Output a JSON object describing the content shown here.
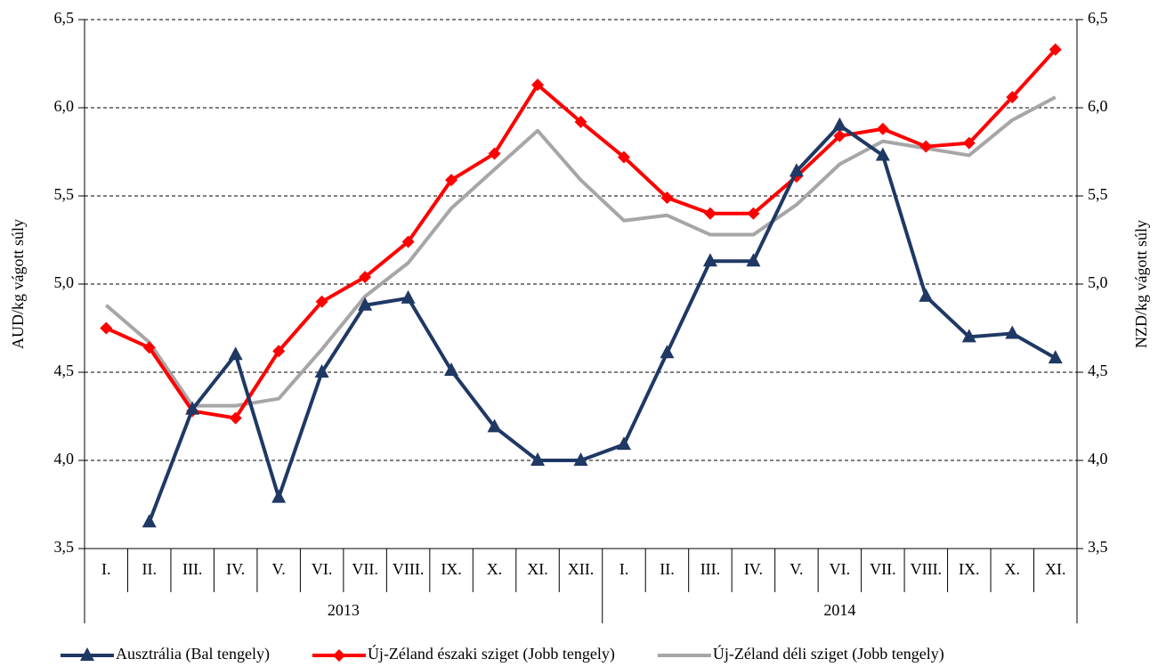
{
  "chart_data": {
    "type": "line",
    "categories": [
      "I.",
      "II.",
      "III.",
      "IV.",
      "V.",
      "VI.",
      "VII.",
      "VIII.",
      "IX.",
      "X.",
      "XI.",
      "XII.",
      "I.",
      "II.",
      "III.",
      "IV.",
      "V.",
      "VI.",
      "VII.",
      "VIII.",
      "IX.",
      "X.",
      "XI."
    ],
    "groups": [
      {
        "label": "2013",
        "size": 12
      },
      {
        "label": "2014",
        "size": 11
      }
    ],
    "ylabel": "AUD/kg vágott súly",
    "y2label": "NZD/kg vágott súly",
    "ylim": [
      3.5,
      6.5
    ],
    "yticks": [
      {
        "value": 3.5,
        "label": "3,5"
      },
      {
        "value": 4,
        "label": "4,0"
      },
      {
        "value": 4.5,
        "label": "4,5"
      },
      {
        "value": 5,
        "label": "5,0"
      },
      {
        "value": 5.5,
        "label": "5,5"
      },
      {
        "value": 6,
        "label": "6,0"
      },
      {
        "value": 6.5,
        "label": "6,5"
      }
    ],
    "y2lim": [
      3.5,
      6.5
    ],
    "y2ticks": [
      {
        "value": 3.5,
        "label": "3,5"
      },
      {
        "value": 4,
        "label": "4,0"
      },
      {
        "value": 4.5,
        "label": "4,5"
      },
      {
        "value": 5,
        "label": "5,0"
      },
      {
        "value": 5.5,
        "label": "5,5"
      },
      {
        "value": 6,
        "label": "6,0"
      },
      {
        "value": 6.5,
        "label": "6,5"
      }
    ],
    "grid": true,
    "legend": "bottom",
    "series": [
      {
        "name": "Ausztrália (Bal tengely)",
        "color": "#1f3864",
        "marker": "triangle",
        "axis": "y",
        "values": [
          null,
          3.65,
          4.29,
          4.6,
          3.79,
          4.5,
          4.88,
          4.92,
          4.51,
          4.19,
          4.0,
          4.0,
          4.09,
          4.61,
          5.13,
          5.13,
          5.64,
          5.9,
          5.73,
          4.93,
          4.7,
          4.72,
          4.58
        ]
      },
      {
        "name": "Új-Zéland északi sziget (Jobb tengely)",
        "color": "#ff0000",
        "marker": "diamond",
        "axis": "y2",
        "values": [
          4.75,
          4.64,
          4.28,
          4.24,
          4.62,
          4.9,
          5.04,
          5.24,
          5.59,
          5.74,
          6.13,
          5.92,
          5.72,
          5.49,
          5.4,
          5.4,
          5.61,
          5.84,
          5.88,
          5.78,
          5.8,
          6.06,
          6.33
        ]
      },
      {
        "name": "Új-Zéland déli sziget (Jobb tengely)",
        "color": "#a6a6a6",
        "marker": "none",
        "axis": "y2",
        "values": [
          4.88,
          4.67,
          4.31,
          4.31,
          4.35,
          4.63,
          4.93,
          5.12,
          5.43,
          5.65,
          5.87,
          5.59,
          5.36,
          5.39,
          5.28,
          5.28,
          5.45,
          5.68,
          5.81,
          5.77,
          5.73,
          5.93,
          6.06
        ]
      }
    ]
  }
}
